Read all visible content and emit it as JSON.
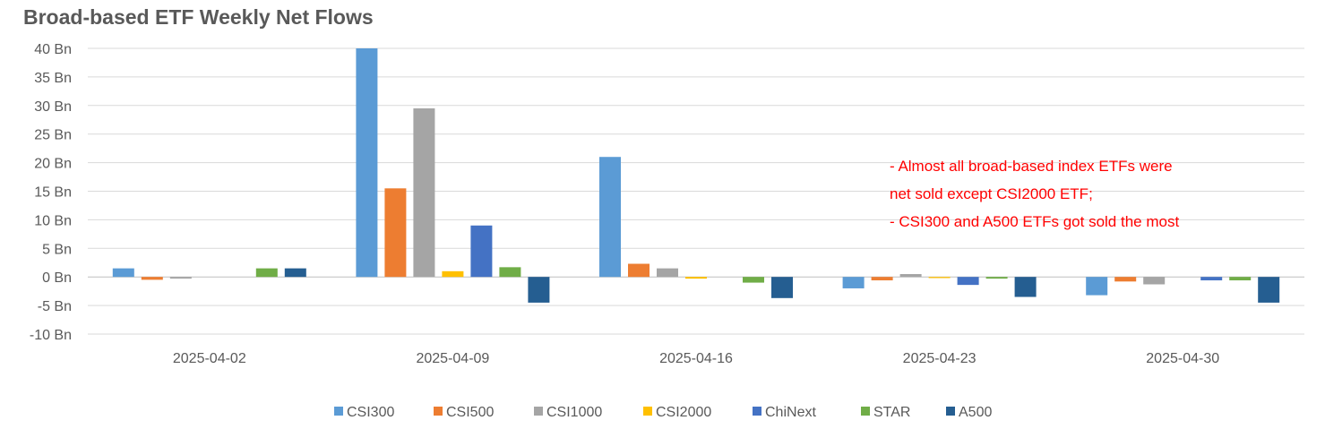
{
  "chart_data": {
    "type": "bar",
    "title": "Broad-based ETF Weekly Net Flows",
    "xlabel": "",
    "ylabel": "",
    "ylim": [
      -10,
      40
    ],
    "yticks": [
      "-10 Bn",
      "-5 Bn",
      "0 Bn",
      "5 Bn",
      "10 Bn",
      "15 Bn",
      "20 Bn",
      "25 Bn",
      "30 Bn",
      "35 Bn",
      "40 Bn"
    ],
    "ytick_values": [
      -10,
      -5,
      0,
      5,
      10,
      15,
      20,
      25,
      30,
      35,
      40
    ],
    "categories": [
      "2025-04-02",
      "2025-04-09",
      "2025-04-16",
      "2025-04-23",
      "2025-04-30"
    ],
    "grid": true,
    "legend_position": "bottom",
    "series": [
      {
        "name": "CSI300",
        "color": "#5b9bd5",
        "values": [
          1.5,
          40,
          21,
          -2,
          -3.2
        ]
      },
      {
        "name": "CSI500",
        "color": "#ed7d31",
        "values": [
          -0.5,
          15.5,
          2.3,
          -0.6,
          -0.8
        ]
      },
      {
        "name": "CSI1000",
        "color": "#a5a5a5",
        "values": [
          -0.3,
          29.5,
          1.5,
          0.5,
          -1.3
        ]
      },
      {
        "name": "CSI2000",
        "color": "#ffc000",
        "values": [
          0,
          1,
          -0.3,
          -0.2,
          0
        ]
      },
      {
        "name": "ChiNext",
        "color": "#4472c4",
        "values": [
          0,
          9,
          0,
          -1.4,
          -0.6
        ]
      },
      {
        "name": "STAR",
        "color": "#70ad47",
        "values": [
          1.5,
          1.7,
          -1,
          -0.3,
          -0.6
        ]
      },
      {
        "name": "A500",
        "color": "#255e91",
        "values": [
          1.5,
          -4.5,
          -3.7,
          -3.5,
          -4.5
        ]
      }
    ],
    "annotations": [
      "- Almost all broad-based index ETFs were",
      "net sold except CSI2000 ETF;",
      "- CSI300 and A500 ETFs got sold the most"
    ]
  }
}
